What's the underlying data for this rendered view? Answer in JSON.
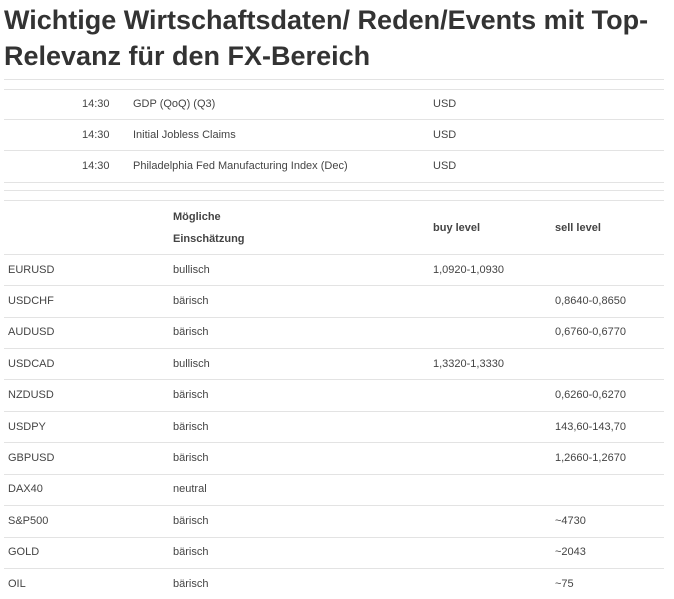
{
  "title": "Wichtige Wirtschaftsdaten/ Reden/Events mit Top-Relevanz für den FX-Bereich",
  "events": [
    {
      "time": "14:30",
      "event": "GDP (QoQ) (Q3)",
      "currency": "USD"
    },
    {
      "time": "14:30",
      "event": "Initial Jobless Claims",
      "currency": "USD"
    },
    {
      "time": "14:30",
      "event": "Philadelphia Fed Manufacturing Index (Dec)",
      "currency": "USD"
    }
  ],
  "levels": {
    "headers": {
      "assessment_line1": "Mögliche",
      "assessment_line2": "Einschätzung",
      "buy": "buy level",
      "sell": "sell level"
    },
    "rows": [
      {
        "instrument": "EURUSD",
        "assessment": "bullisch",
        "buy": "1,0920-1,0930",
        "sell": ""
      },
      {
        "instrument": "USDCHF",
        "assessment": "bärisch",
        "buy": "",
        "sell": "0,8640-0,8650"
      },
      {
        "instrument": "AUDUSD",
        "assessment": "bärisch",
        "buy": "",
        "sell": "0,6760-0,6770"
      },
      {
        "instrument": "USDCAD",
        "assessment": "bullisch",
        "buy": "1,3320-1,3330",
        "sell": ""
      },
      {
        "instrument": "NZDUSD",
        "assessment": "bärisch",
        "buy": "",
        "sell": "0,6260-0,6270"
      },
      {
        "instrument": "USDPY",
        "assessment": "bärisch",
        "buy": "",
        "sell": "143,60-143,70"
      },
      {
        "instrument": "GBPUSD",
        "assessment": "bärisch",
        "buy": "",
        "sell": "1,2660-1,2670"
      },
      {
        "instrument": "DAX40",
        "assessment": "neutral",
        "buy": "",
        "sell": ""
      },
      {
        "instrument": "S&P500",
        "assessment": "bärisch",
        "buy": "",
        "sell": "~4730"
      },
      {
        "instrument": "GOLD",
        "assessment": "bärisch",
        "buy": "",
        "sell": "~2043"
      },
      {
        "instrument": "OIL",
        "assessment": "bärisch",
        "buy": "",
        "sell": "~75"
      }
    ]
  }
}
